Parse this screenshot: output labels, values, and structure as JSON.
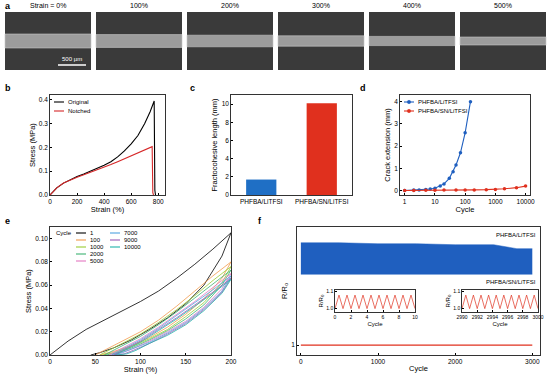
{
  "chart_data": [
    {
      "type": "image",
      "title": "a",
      "labels": [
        "Strain = 0%",
        "100%",
        "200%",
        "300%",
        "400%",
        "500%"
      ],
      "scale_bar": "500 µm"
    },
    {
      "type": "line",
      "title": "b",
      "x_label": "Strain (%)",
      "y_label": "Stress (MPa)",
      "xlim": [
        0,
        850
      ],
      "xticks": [
        0,
        200,
        400,
        600,
        800
      ],
      "ylim": [
        0,
        0.42
      ],
      "yticks": [
        {
          "value": 0,
          "label": "0.0"
        },
        0.1,
        0.2,
        0.3,
        0.4
      ],
      "grid": false,
      "legend": "upper left",
      "series": [
        {
          "name": "Original",
          "color": "#000000",
          "x": [
            0,
            50,
            100,
            150,
            200,
            250,
            300,
            350,
            400,
            450,
            500,
            550,
            600,
            650,
            700,
            740,
            770,
            775,
            780
          ],
          "values": [
            0,
            0.03,
            0.05,
            0.065,
            0.078,
            0.088,
            0.1,
            0.11,
            0.125,
            0.14,
            0.16,
            0.185,
            0.215,
            0.25,
            0.3,
            0.35,
            0.395,
            0.02,
            0
          ]
        },
        {
          "name": "Notched",
          "color": "#d62728",
          "x": [
            0,
            50,
            100,
            150,
            200,
            250,
            300,
            350,
            400,
            450,
            500,
            550,
            600,
            650,
            700,
            740,
            755,
            760,
            765
          ],
          "values": [
            0,
            0.03,
            0.05,
            0.063,
            0.075,
            0.085,
            0.095,
            0.105,
            0.117,
            0.128,
            0.14,
            0.152,
            0.165,
            0.178,
            0.19,
            0.2,
            0.203,
            0.01,
            0
          ]
        }
      ]
    },
    {
      "type": "bar",
      "title": "c",
      "y_label": "Fractocohesive length (mm)",
      "categories": [
        "PHFBA/LiTFSI",
        "PHFBA/SN/LiTFSI"
      ],
      "values": [
        1.7,
        10.1
      ],
      "colors": [
        "#1f6fc5",
        "#e0301e"
      ],
      "ylim": [
        0,
        11
      ],
      "yticks": [
        0,
        2,
        4,
        6,
        8,
        10
      ],
      "grid": false
    },
    {
      "type": "line",
      "title": "d",
      "x_label": "Cycle",
      "y_label": "Crack extension (mm)",
      "log": "x",
      "xlim": [
        0.7,
        14000
      ],
      "xticks": [
        1,
        10,
        100,
        1000,
        10000
      ],
      "ylim": [
        -0.2,
        4.3
      ],
      "yticks": [
        0,
        1,
        2,
        3,
        4
      ],
      "grid": false,
      "legend": "upper left",
      "series": [
        {
          "name": "PHFBA/LiTFSI",
          "color": "#1f5fbf",
          "marker": "circle",
          "x": [
            1,
            2,
            3,
            5,
            7,
            10,
            15,
            20,
            30,
            40,
            50,
            70,
            100,
            150
          ],
          "values": [
            0,
            0.02,
            0.03,
            0.05,
            0.07,
            0.1,
            0.2,
            0.3,
            0.55,
            0.85,
            1.15,
            1.7,
            2.6,
            4.0
          ]
        },
        {
          "name": "PHFBA/SN/LiTFSI",
          "color": "#e0301e",
          "marker": "circle",
          "x": [
            1,
            2,
            5,
            10,
            20,
            50,
            100,
            200,
            500,
            1000,
            2000,
            5000,
            10000
          ],
          "values": [
            0,
            0,
            0.01,
            0.01,
            0.02,
            0.02,
            0.03,
            0.03,
            0.04,
            0.05,
            0.08,
            0.13,
            0.2
          ]
        }
      ]
    },
    {
      "type": "line",
      "title": "e",
      "x_label": "Strain (%)",
      "y_label": "Stress (MPa)",
      "xlim": [
        0,
        200
      ],
      "xticks": [
        0,
        50,
        100,
        150,
        200
      ],
      "ylim": [
        0,
        0.11
      ],
      "yticks": [
        {
          "value": 0,
          "label": "0.00"
        },
        {
          "value": 0.02,
          "label": "0.02"
        },
        {
          "value": 0.04,
          "label": "0.04"
        },
        {
          "value": 0.06,
          "label": "0.06"
        },
        {
          "value": 0.08,
          "label": "0.08"
        },
        {
          "value": 0.1,
          "label": "0.10"
        }
      ],
      "grid": false,
      "legend": "upper left",
      "legend_title": "Cycle",
      "series": [
        {
          "name": "1",
          "color": "#000000",
          "x": [
            0,
            20,
            40,
            60,
            80,
            100,
            120,
            140,
            160,
            180,
            200,
            190,
            170,
            150,
            130,
            110,
            90,
            70,
            55,
            45
          ],
          "values": [
            0,
            0.012,
            0.022,
            0.03,
            0.038,
            0.046,
            0.055,
            0.066,
            0.078,
            0.091,
            0.105,
            0.085,
            0.06,
            0.044,
            0.032,
            0.022,
            0.013,
            0.006,
            0.002,
            0
          ]
        },
        {
          "name": "100",
          "color": "#f39a4c",
          "x": [
            50,
            80,
            100,
            120,
            140,
            160,
            180,
            200,
            190,
            170,
            150,
            130,
            110,
            90,
            70,
            55
          ],
          "values": [
            0,
            0.012,
            0.02,
            0.03,
            0.042,
            0.055,
            0.068,
            0.08,
            0.066,
            0.048,
            0.035,
            0.024,
            0.015,
            0.008,
            0.003,
            0
          ]
        },
        {
          "name": "1000",
          "color": "#9acd32",
          "x": [
            55,
            80,
            100,
            120,
            140,
            160,
            180,
            200,
            190,
            170,
            150,
            130,
            110,
            90,
            70,
            58
          ],
          "values": [
            0,
            0.01,
            0.018,
            0.028,
            0.039,
            0.051,
            0.064,
            0.076,
            0.062,
            0.045,
            0.033,
            0.022,
            0.014,
            0.007,
            0.002,
            0
          ]
        },
        {
          "name": "2000",
          "color": "#3cb371",
          "x": [
            60,
            80,
            100,
            120,
            140,
            160,
            180,
            200,
            190,
            170,
            150,
            130,
            110,
            90,
            75,
            62
          ],
          "values": [
            0,
            0.008,
            0.016,
            0.026,
            0.037,
            0.049,
            0.061,
            0.073,
            0.06,
            0.043,
            0.031,
            0.021,
            0.013,
            0.006,
            0.002,
            0
          ]
        },
        {
          "name": "5000",
          "color": "#e377c2",
          "x": [
            65,
            80,
            100,
            120,
            140,
            160,
            180,
            200,
            190,
            170,
            150,
            130,
            110,
            90,
            78,
            67
          ],
          "values": [
            0,
            0.006,
            0.014,
            0.024,
            0.035,
            0.046,
            0.058,
            0.07,
            0.057,
            0.041,
            0.029,
            0.02,
            0.012,
            0.005,
            0.002,
            0
          ]
        },
        {
          "name": "7000",
          "color": "#4fa3e0",
          "x": [
            68,
            80,
            100,
            120,
            140,
            160,
            180,
            200,
            190,
            170,
            150,
            130,
            110,
            90,
            80,
            70
          ],
          "values": [
            0,
            0.005,
            0.013,
            0.023,
            0.034,
            0.045,
            0.056,
            0.068,
            0.055,
            0.04,
            0.028,
            0.019,
            0.011,
            0.005,
            0.002,
            0
          ]
        },
        {
          "name": "9000",
          "color": "#9b59b6",
          "x": [
            70,
            80,
            100,
            120,
            140,
            160,
            180,
            200,
            190,
            170,
            150,
            130,
            110,
            92,
            82,
            72
          ],
          "values": [
            0,
            0.004,
            0.012,
            0.022,
            0.032,
            0.043,
            0.054,
            0.066,
            0.054,
            0.039,
            0.027,
            0.018,
            0.01,
            0.004,
            0.001,
            0
          ]
        },
        {
          "name": "10000",
          "color": "#20b2aa",
          "x": [
            72,
            85,
            100,
            120,
            140,
            160,
            180,
            200,
            190,
            170,
            150,
            130,
            110,
            95,
            85,
            74
          ],
          "values": [
            0,
            0.005,
            0.011,
            0.021,
            0.031,
            0.042,
            0.053,
            0.065,
            0.053,
            0.038,
            0.026,
            0.017,
            0.01,
            0.004,
            0.001,
            0
          ]
        }
      ]
    },
    {
      "type": "line",
      "title": "f",
      "x_label": "Cycle",
      "y_label": "R/R₀",
      "xlim": [
        -50,
        3100
      ],
      "xticks": [
        0,
        1000,
        2000,
        3000
      ],
      "ylim": [
        0.5,
        7
      ],
      "yticks": [
        1
      ],
      "grid": false,
      "series": [
        {
          "name": "PHFBA/LiTFSI",
          "type": "band",
          "color": "#1f5fbf",
          "x": [
            0,
            500,
            1000,
            1500,
            2000,
            2500,
            2800,
            3000
          ],
          "upper": [
            6.2,
            6.2,
            6.15,
            6.15,
            6.1,
            6.1,
            5.9,
            5.9
          ],
          "lower": [
            4.6,
            4.6,
            4.6,
            4.6,
            4.6,
            4.6,
            4.6,
            4.6
          ]
        },
        {
          "name": "PHFBA/SN/LiTFSI",
          "color": "#e0301e",
          "x": [
            0,
            3000
          ],
          "values": [
            1,
            1
          ]
        }
      ],
      "insets": [
        {
          "type": "line",
          "x_label": "Cycle",
          "y_label": "R/R₀",
          "xlim": [
            0,
            10
          ],
          "xticks": [
            0,
            2,
            4,
            6,
            8,
            10
          ],
          "ylim": [
            0.98,
            1.11
          ],
          "yticks": [
            {
              "value": 1,
              "label": "1.0"
            },
            1.1
          ],
          "grid": false,
          "series": [
            {
              "color": "#e0301e",
              "x": [
                0,
                0.5,
                1,
                1.5,
                2,
                2.5,
                3,
                3.5,
                4,
                4.5,
                5,
                5.5,
                6,
                6.5,
                7,
                7.5,
                8,
                8.5,
                9,
                9.5,
                10
              ],
              "values": [
                1,
                1.08,
                1,
                1.08,
                1,
                1.08,
                1,
                1.08,
                1,
                1.08,
                1,
                1.08,
                1,
                1.08,
                1,
                1.08,
                1,
                1.08,
                1,
                1.08,
                1
              ]
            }
          ]
        },
        {
          "type": "line",
          "x_label": "Cycle",
          "y_label": "R/R₀",
          "xlim": [
            2990,
            3000
          ],
          "xticks": [
            2990,
            2992,
            2994,
            2996,
            2998,
            3000
          ],
          "ylim": [
            0.98,
            1.11
          ],
          "yticks": [
            {
              "value": 1,
              "label": "1.0"
            },
            1.1
          ],
          "grid": false,
          "series": [
            {
              "color": "#e0301e",
              "x": [
                2990,
                2990.5,
                2991,
                2991.5,
                2992,
                2992.5,
                2993,
                2993.5,
                2994,
                2994.5,
                2995,
                2995.5,
                2996,
                2996.5,
                2997,
                2997.5,
                2998,
                2998.5,
                2999,
                2999.5,
                3000
              ],
              "values": [
                1,
                1.08,
                1,
                1.08,
                1,
                1.08,
                1,
                1.08,
                1,
                1.08,
                1,
                1.08,
                1,
                1.08,
                1,
                1.08,
                1,
                1.08,
                1,
                1.08,
                1
              ]
            }
          ]
        }
      ]
    }
  ]
}
